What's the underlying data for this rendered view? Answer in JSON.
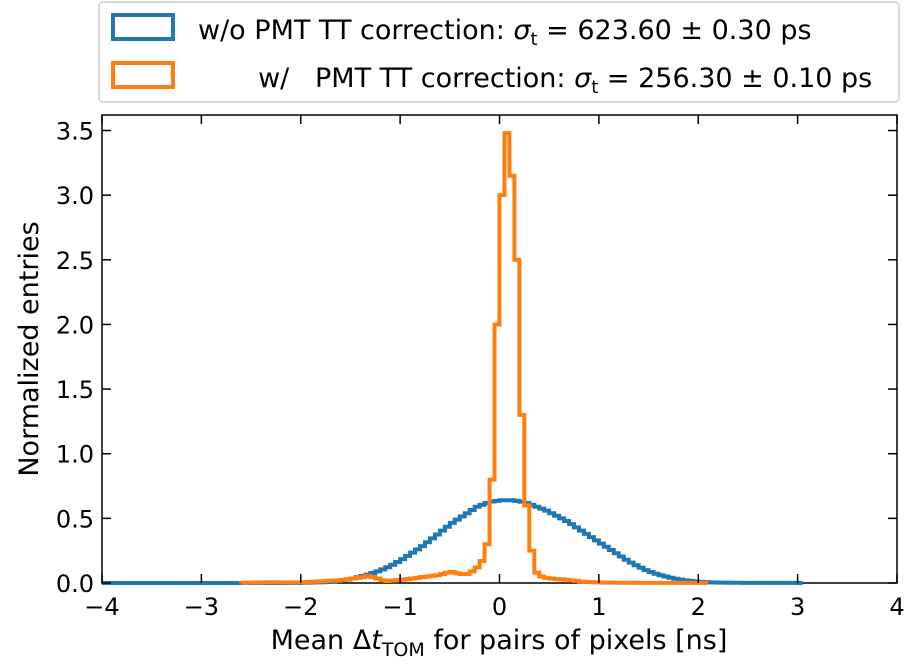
{
  "chart_data": {
    "type": "histogram",
    "xlabel": {
      "prefix": "Mean Δ",
      "var": "t",
      "sub": "TOM",
      "suffix": " for pairs of pixels [ns]"
    },
    "ylabel": "Normalized entries",
    "xlim": [
      -4,
      4
    ],
    "ylim": [
      0,
      3.62
    ],
    "xticks": [
      -4,
      -3,
      -2,
      -1,
      0,
      1,
      2,
      3,
      4
    ],
    "xtick_labels": [
      "−4",
      "−3",
      "−2",
      "−1",
      "0",
      "1",
      "2",
      "3",
      "4"
    ],
    "yticks": [
      0.0,
      0.5,
      1.0,
      1.5,
      2.0,
      2.5,
      3.0,
      3.5
    ],
    "ytick_labels": [
      "0.0",
      "0.5",
      "1.0",
      "1.5",
      "2.0",
      "2.5",
      "3.0",
      "3.5"
    ],
    "grid": false,
    "legend_position": "above-plot",
    "series": [
      {
        "name": "w/o PMT TT correction",
        "legend": {
          "prefix": "w/o PMT TT correction: ",
          "sigma": "σ",
          "sub": "t",
          "value": " = 623.60 ± 0.30 ps"
        },
        "color": "#1f77b4",
        "bin_width": 0.05,
        "x": [
          -4.0,
          -3.95,
          -3.9,
          -3.85,
          -3.8,
          -3.75,
          -3.7,
          -3.65,
          -3.6,
          -3.55,
          -3.5,
          -3.45,
          -3.4,
          -3.35,
          -3.3,
          -3.25,
          -3.2,
          -3.15,
          -3.1,
          -3.05,
          -3.0,
          -2.95,
          -2.9,
          -2.85,
          -2.8,
          -2.75,
          -2.7,
          -2.65,
          -2.6,
          -2.55,
          -2.5,
          -2.45,
          -2.4,
          -2.35,
          -2.3,
          -2.25,
          -2.2,
          -2.15,
          -2.1,
          -2.05,
          -2.0,
          -1.95,
          -1.9,
          -1.85,
          -1.8,
          -1.75,
          -1.7,
          -1.65,
          -1.6,
          -1.55,
          -1.5,
          -1.45,
          -1.4,
          -1.35,
          -1.3,
          -1.25,
          -1.2,
          -1.15,
          -1.1,
          -1.05,
          -1.0,
          -0.95,
          -0.9,
          -0.85,
          -0.8,
          -0.75,
          -0.7,
          -0.65,
          -0.6,
          -0.55,
          -0.5,
          -0.45,
          -0.4,
          -0.35,
          -0.3,
          -0.25,
          -0.2,
          -0.15,
          -0.1,
          -0.05,
          0.0,
          0.05,
          0.1,
          0.15,
          0.2,
          0.25,
          0.3,
          0.35,
          0.4,
          0.45,
          0.5,
          0.55,
          0.6,
          0.65,
          0.7,
          0.75,
          0.8,
          0.85,
          0.9,
          0.95,
          1.0,
          1.05,
          1.1,
          1.15,
          1.2,
          1.25,
          1.3,
          1.35,
          1.4,
          1.45,
          1.5,
          1.55,
          1.6,
          1.65,
          1.7,
          1.75,
          1.8,
          1.85,
          1.9,
          1.95,
          2.0,
          2.05,
          2.1,
          2.15,
          2.2,
          2.25,
          2.3,
          2.35,
          2.4,
          2.45,
          2.5,
          2.55,
          2.6,
          2.65,
          2.7,
          2.75,
          2.8,
          2.85,
          2.9,
          2.95,
          3.0
        ],
        "y": [
          0.0,
          0.0,
          0.0,
          0.0,
          0.0,
          0.0,
          0.0,
          0.0,
          0.0,
          0.0,
          0.0,
          0.0,
          0.0,
          0.0,
          0.0,
          0.0,
          0.0,
          0.0,
          0.0,
          0.0,
          0.0,
          0.0,
          0.0,
          0.0,
          0.0,
          0.0,
          0.0,
          0.0,
          0.0,
          0.0,
          0.0,
          0.0,
          0.0,
          0.0,
          0.0,
          0.0,
          0.0,
          0.0,
          0.0,
          0.0,
          0.002,
          0.003,
          0.004,
          0.005,
          0.006,
          0.008,
          0.011,
          0.015,
          0.02,
          0.027,
          0.035,
          0.044,
          0.054,
          0.065,
          0.077,
          0.09,
          0.105,
          0.122,
          0.141,
          0.162,
          0.185,
          0.21,
          0.235,
          0.26,
          0.285,
          0.315,
          0.345,
          0.375,
          0.405,
          0.435,
          0.465,
          0.49,
          0.515,
          0.54,
          0.565,
          0.59,
          0.605,
          0.62,
          0.63,
          0.635,
          0.64,
          0.64,
          0.64,
          0.635,
          0.628,
          0.62,
          0.605,
          0.59,
          0.575,
          0.56,
          0.54,
          0.52,
          0.5,
          0.48,
          0.455,
          0.43,
          0.405,
          0.38,
          0.355,
          0.33,
          0.305,
          0.28,
          0.255,
          0.23,
          0.205,
          0.18,
          0.158,
          0.137,
          0.118,
          0.1,
          0.085,
          0.072,
          0.06,
          0.05,
          0.041,
          0.033,
          0.026,
          0.02,
          0.016,
          0.012,
          0.009,
          0.007,
          0.005,
          0.004,
          0.003,
          0.003,
          0.002,
          0.002,
          0.002,
          0.001,
          0.001,
          0.001,
          0.001,
          0.001,
          0.001,
          0.001,
          0.001,
          0.001,
          0.001,
          0.001,
          0.0
        ]
      },
      {
        "name": "w/ PMT TT correction",
        "legend": {
          "prefix": "w/   PMT TT correction: ",
          "sigma": "σ",
          "sub": "t",
          "value": " = 256.30 ± 0.10 ps"
        },
        "color": "#ff7f0e",
        "bin_width": 0.05,
        "x": [
          -2.6,
          -2.55,
          -2.5,
          -2.45,
          -2.4,
          -2.35,
          -2.3,
          -2.25,
          -2.2,
          -2.15,
          -2.1,
          -2.05,
          -2.0,
          -1.95,
          -1.9,
          -1.85,
          -1.8,
          -1.75,
          -1.7,
          -1.65,
          -1.6,
          -1.55,
          -1.5,
          -1.45,
          -1.4,
          -1.35,
          -1.3,
          -1.25,
          -1.2,
          -1.15,
          -1.1,
          -1.05,
          -1.0,
          -0.95,
          -0.9,
          -0.85,
          -0.8,
          -0.75,
          -0.7,
          -0.65,
          -0.6,
          -0.55,
          -0.5,
          -0.45,
          -0.4,
          -0.35,
          -0.3,
          -0.25,
          -0.2,
          -0.15,
          -0.1,
          -0.05,
          0.0,
          0.05,
          0.1,
          0.15,
          0.2,
          0.25,
          0.3,
          0.35,
          0.4,
          0.45,
          0.5,
          0.55,
          0.6,
          0.65,
          0.7,
          0.75,
          0.8,
          0.85,
          0.9,
          0.95,
          1.0,
          1.05,
          1.1,
          1.15,
          1.2,
          1.25,
          1.3,
          1.35,
          1.4,
          1.45,
          1.5,
          1.55,
          1.6,
          1.65,
          1.7,
          1.75,
          1.8,
          1.85,
          1.9,
          1.95,
          2.0,
          2.05
        ],
        "y": [
          0.002,
          0.003,
          0.004,
          0.005,
          0.005,
          0.006,
          0.006,
          0.005,
          0.005,
          0.005,
          0.004,
          0.005,
          0.006,
          0.008,
          0.01,
          0.012,
          0.014,
          0.016,
          0.018,
          0.02,
          0.024,
          0.03,
          0.035,
          0.04,
          0.045,
          0.055,
          0.045,
          0.035,
          0.02,
          0.015,
          0.018,
          0.022,
          0.025,
          0.03,
          0.035,
          0.04,
          0.045,
          0.05,
          0.055,
          0.06,
          0.07,
          0.08,
          0.085,
          0.075,
          0.07,
          0.07,
          0.09,
          0.12,
          0.17,
          0.3,
          0.8,
          2.0,
          3.0,
          3.48,
          3.15,
          2.5,
          1.3,
          0.6,
          0.25,
          0.08,
          0.05,
          0.04,
          0.035,
          0.03,
          0.028,
          0.025,
          0.02,
          0.016,
          0.012,
          0.009,
          0.007,
          0.005,
          0.004,
          0.003,
          0.003,
          0.002,
          0.002,
          0.002,
          0.002,
          0.001,
          0.001,
          0.001,
          0.001,
          0.001,
          0.001,
          0.001,
          0.001,
          0.001,
          0.001,
          0.001,
          0.001,
          0.001,
          0.001,
          0.0
        ]
      }
    ]
  }
}
